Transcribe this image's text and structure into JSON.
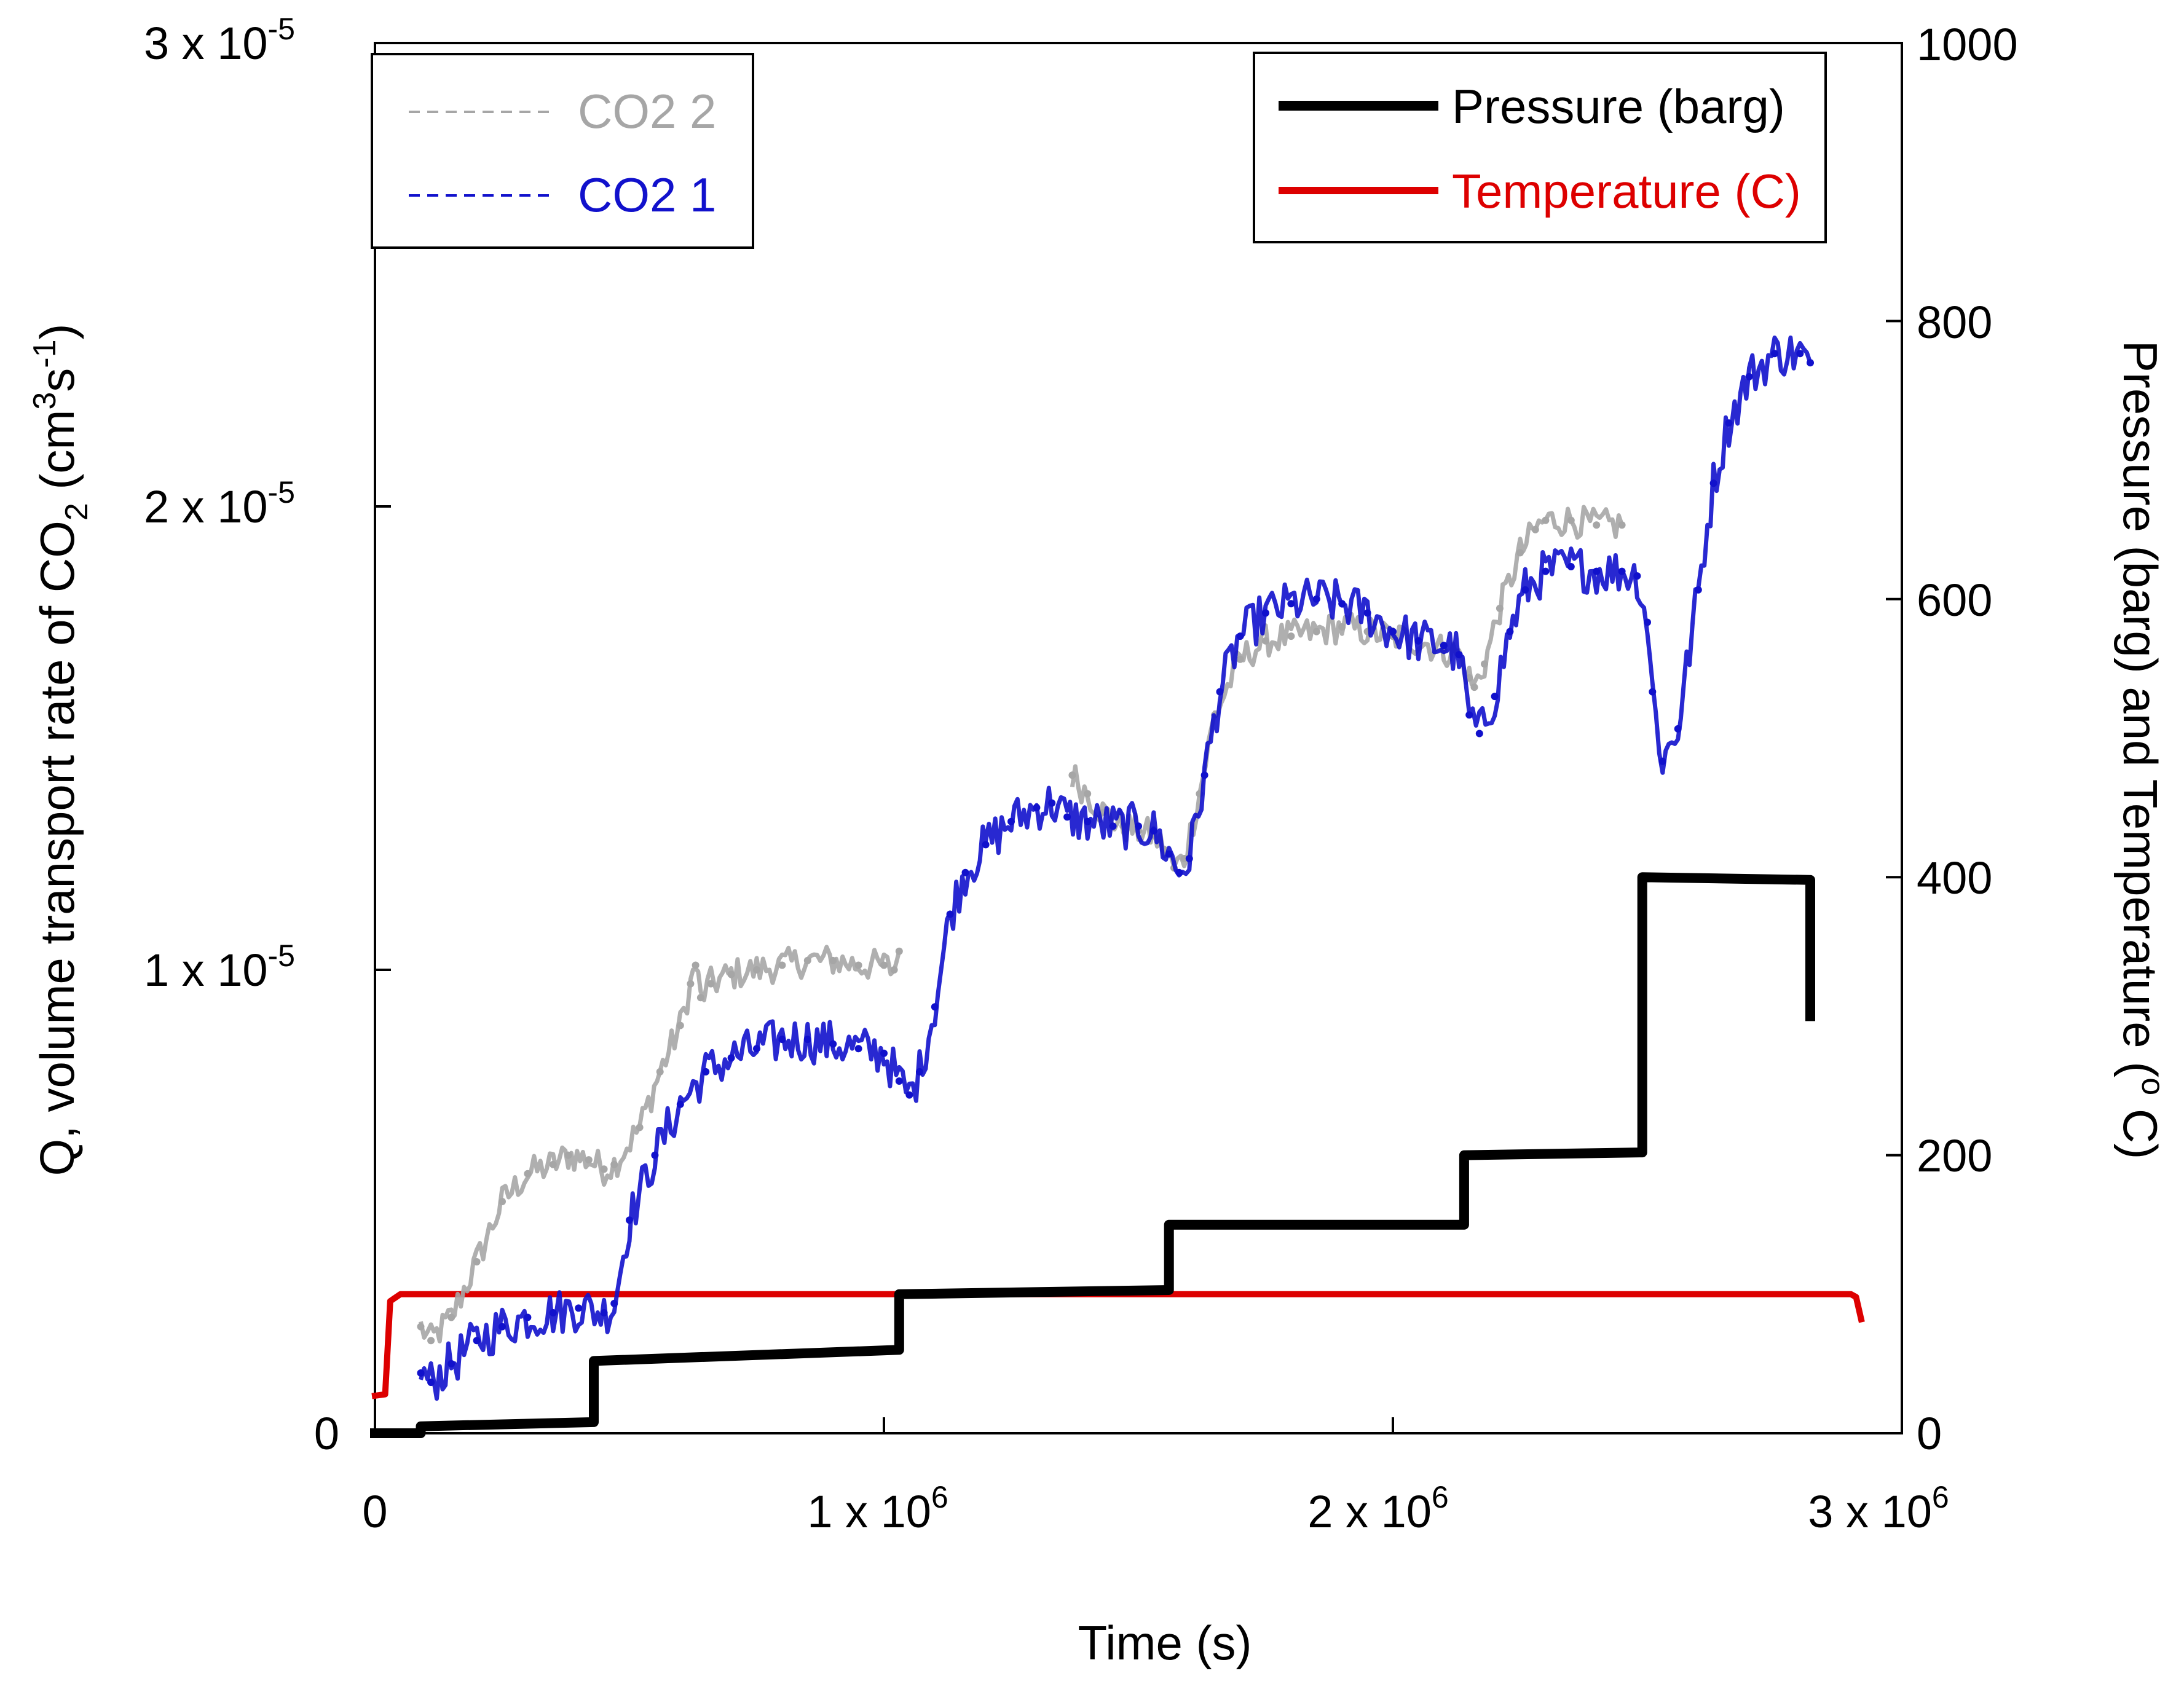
{
  "chart_data": {
    "type": "line",
    "title": "",
    "xlabel": "Time (s)",
    "ylabel_left": "Q, volume transport rate of CO",
    "ylabel_left_sub": "2",
    "ylabel_left_unit_pre": " (cm",
    "ylabel_left_unit_sup1": "3",
    "ylabel_left_unit_mid": "s",
    "ylabel_left_unit_sup2": "-1",
    "ylabel_left_unit_post": ")",
    "ylabel_right": "Pressure (barg) and Temperature (",
    "ylabel_right_sup": "o",
    "ylabel_right_post": " C)",
    "xlim": [
      0,
      3000000
    ],
    "ylim_left": [
      0,
      3e-05
    ],
    "ylim_right": [
      0,
      1000
    ],
    "x_ticks": [
      {
        "value": 0,
        "mant": "0",
        "exp": ""
      },
      {
        "value": 1000000,
        "mant": "1 x 10",
        "exp": "6"
      },
      {
        "value": 2000000,
        "mant": "2 x 10",
        "exp": "6"
      },
      {
        "value": 3000000,
        "mant": "3 x 10",
        "exp": "6"
      }
    ],
    "y_left_ticks": [
      {
        "value": 0,
        "mant": "0",
        "exp": ""
      },
      {
        "value": 1e-05,
        "mant": "1 x 10",
        "exp": "-5"
      },
      {
        "value": 2e-05,
        "mant": "2 x 10",
        "exp": "-5"
      },
      {
        "value": 3e-05,
        "mant": "3 x 10",
        "exp": "-5"
      }
    ],
    "y_right_ticks": [
      {
        "value": 0,
        "label": "0"
      },
      {
        "value": 200,
        "label": "200"
      },
      {
        "value": 400,
        "label": "400"
      },
      {
        "value": 600,
        "label": "600"
      },
      {
        "value": 800,
        "label": "800"
      },
      {
        "value": 1000,
        "label": "1000"
      }
    ],
    "legend_left": {
      "position": "top-left",
      "entries": [
        {
          "label": "CO2 2",
          "color": "#a6a6a6",
          "style": "dashed"
        },
        {
          "label": "CO2 1",
          "color": "#1111cc",
          "style": "dashed"
        }
      ]
    },
    "legend_right": {
      "position": "top-right",
      "entries": [
        {
          "label": "Pressure (barg)",
          "color": "#000000",
          "style": "solid"
        },
        {
          "label": "Temperature (C)",
          "color": "#dd0000",
          "style": "solid"
        }
      ]
    },
    "series": [
      {
        "name": "CO2 2",
        "axis": "left",
        "color": "#a6a6a6",
        "noise": 3.5e-07,
        "x": [
          90000,
          110000,
          150000,
          200000,
          250000,
          300000,
          350000,
          380000,
          420000,
          450000,
          470000,
          520000,
          560000,
          600000,
          620000,
          630000,
          640000,
          660000,
          700000,
          750000,
          800000,
          850000,
          900000,
          950000,
          1000000,
          1020000,
          1030000
        ],
        "y": [
          2.3e-06,
          2e-06,
          2.5e-06,
          3.7e-06,
          5e-06,
          5.6e-06,
          5.8e-06,
          6e-06,
          5.9e-06,
          5.7e-06,
          5.8e-06,
          6.6e-06,
          7.8e-06,
          8.8e-06,
          9.7e-06,
          1.01e-05,
          9.4e-06,
          9.7e-06,
          9.9e-06,
          1e-05,
          1.01e-05,
          1.02e-05,
          1.02e-05,
          1.01e-05,
          1.01e-05,
          1e-05,
          1.04e-05
        ]
      },
      {
        "name": "CO2 2 (segment 2)",
        "axis": "left",
        "color": "#a6a6a6",
        "noise": 3.5e-07,
        "x": [
          1370000,
          1400000,
          1430000,
          1470000,
          1500000,
          1530000,
          1550000,
          1570000,
          1590000,
          1620000,
          1650000,
          1700000,
          1750000,
          1800000,
          1850000,
          1900000,
          1950000,
          2000000,
          2050000,
          2100000,
          2130000,
          2150000,
          2160000,
          2180000,
          2210000,
          2250000,
          2280000,
          2300000,
          2350000,
          2400000,
          2450000
        ],
        "y": [
          1.42e-05,
          1.38e-05,
          1.34e-05,
          1.31e-05,
          1.3e-05,
          1.29e-05,
          1.26e-05,
          1.22e-05,
          1.24e-05,
          1.38e-05,
          1.55e-05,
          1.67e-05,
          1.71e-05,
          1.72e-05,
          1.73e-05,
          1.74e-05,
          1.73e-05,
          1.72e-05,
          1.71e-05,
          1.69e-05,
          1.68e-05,
          1.63e-05,
          1.61e-05,
          1.66e-05,
          1.78e-05,
          1.9e-05,
          1.95e-05,
          1.97e-05,
          1.97e-05,
          1.96e-05,
          1.96e-05
        ]
      },
      {
        "name": "CO2 1",
        "axis": "left",
        "color": "#1111cc",
        "noise": 5e-07,
        "x": [
          90000,
          110000,
          150000,
          200000,
          250000,
          300000,
          350000,
          400000,
          450000,
          470000,
          500000,
          550000,
          600000,
          650000,
          700000,
          750000,
          800000,
          850000,
          900000,
          950000,
          1000000,
          1030000,
          1050000,
          1070000,
          1100000,
          1130000,
          1160000,
          1200000,
          1250000,
          1300000,
          1330000,
          1360000,
          1400000,
          1450000,
          1500000,
          1530000,
          1560000,
          1580000,
          1600000,
          1630000,
          1660000,
          1700000,
          1750000,
          1800000,
          1850000,
          1900000,
          1950000,
          2000000,
          2050000,
          2100000,
          2130000,
          2150000,
          2170000,
          2200000,
          2230000,
          2260000,
          2300000,
          2350000,
          2400000,
          2450000,
          2480000,
          2500000,
          2510000,
          2530000,
          2560000,
          2600000,
          2630000,
          2660000,
          2700000,
          2750000,
          2800000,
          2820000
        ],
        "y": [
          1.3e-06,
          1.1e-06,
          1.5e-06,
          2e-06,
          2.3e-06,
          2.5e-06,
          2.6e-06,
          2.7e-06,
          2.6e-06,
          2.8e-06,
          4.6e-06,
          6e-06,
          7.1e-06,
          7.8e-06,
          8.1e-06,
          8.3e-06,
          8.5e-06,
          8.5e-06,
          8.4e-06,
          8.3e-06,
          8.2e-06,
          7.6e-06,
          7.3e-06,
          7.8e-06,
          9.2e-06,
          1.12e-05,
          1.21e-05,
          1.27e-05,
          1.32e-05,
          1.35e-05,
          1.36e-05,
          1.33e-05,
          1.32e-05,
          1.31e-05,
          1.31e-05,
          1.3e-05,
          1.25e-05,
          1.21e-05,
          1.24e-05,
          1.42e-05,
          1.6e-05,
          1.72e-05,
          1.77e-05,
          1.79e-05,
          1.8e-05,
          1.79e-05,
          1.77e-05,
          1.73e-05,
          1.71e-05,
          1.7e-05,
          1.68e-05,
          1.55e-05,
          1.51e-05,
          1.59e-05,
          1.73e-05,
          1.82e-05,
          1.86e-05,
          1.87e-05,
          1.86e-05,
          1.86e-05,
          1.85e-05,
          1.75e-05,
          1.6e-05,
          1.45e-05,
          1.52e-05,
          1.82e-05,
          2.05e-05,
          2.18e-05,
          2.28e-05,
          2.33e-05,
          2.33e-05,
          2.31e-05
        ]
      },
      {
        "name": "Pressure (barg)",
        "axis": "right",
        "color": "#000000",
        "noise": 0,
        "x": [
          0,
          90000,
          90000,
          430000,
          430000,
          1030000,
          1030000,
          1560000,
          1560000,
          2140000,
          2140000,
          2490000,
          2490000,
          2820000,
          2820000,
          2820000
        ],
        "y": [
          0,
          0,
          5,
          8,
          52,
          60,
          100,
          103,
          150,
          150,
          200,
          202,
          400,
          398,
          385,
          300
        ]
      },
      {
        "name": "Temperature (C)",
        "axis": "right",
        "color": "#dd0000",
        "noise": 0,
        "x": [
          0,
          20000,
          30000,
          50000,
          100000,
          500000,
          1000000,
          1500000,
          2000000,
          2500000,
          2900000,
          2910000,
          2920000
        ],
        "y": [
          27,
          28,
          95,
          100,
          100,
          100,
          100,
          100,
          100,
          100,
          100,
          98,
          82
        ]
      }
    ]
  }
}
